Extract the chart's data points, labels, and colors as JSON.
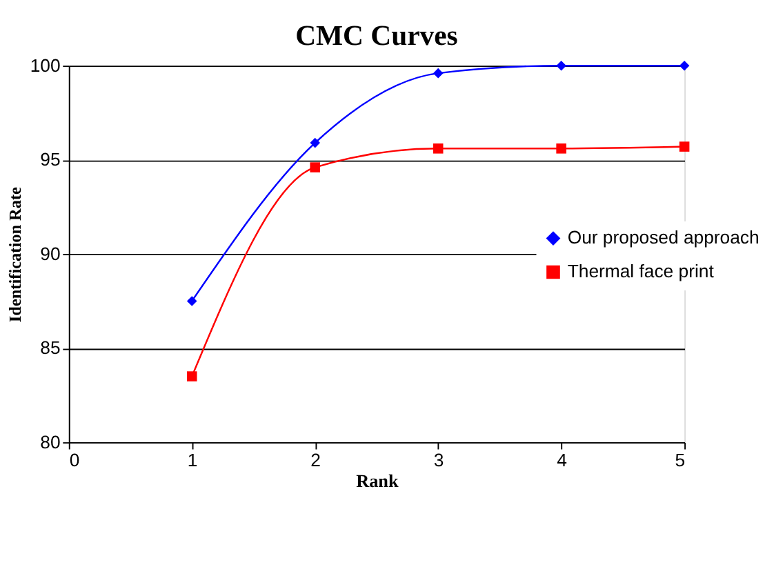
{
  "chart_data": {
    "type": "line",
    "title": "CMC Curves",
    "xlabel": "Rank",
    "ylabel": "Identification Rate",
    "x": [
      1,
      2,
      3,
      4,
      5
    ],
    "series": [
      {
        "name": "Our proposed approach",
        "color": "#0000ff",
        "marker": "diamond",
        "values": [
          87.5,
          95.9,
          99.6,
          100,
          100
        ]
      },
      {
        "name": "Thermal face print",
        "color": "#ff0000",
        "marker": "square",
        "values": [
          83.5,
          94.6,
          95.6,
          95.6,
          95.7
        ]
      }
    ],
    "xlim": [
      0,
      5
    ],
    "xticks": [
      0,
      1,
      2,
      3,
      4,
      5
    ],
    "ylim": [
      80,
      100
    ],
    "yticks": [
      80,
      85,
      90,
      95,
      100
    ],
    "grid": "y",
    "legend": "right"
  }
}
